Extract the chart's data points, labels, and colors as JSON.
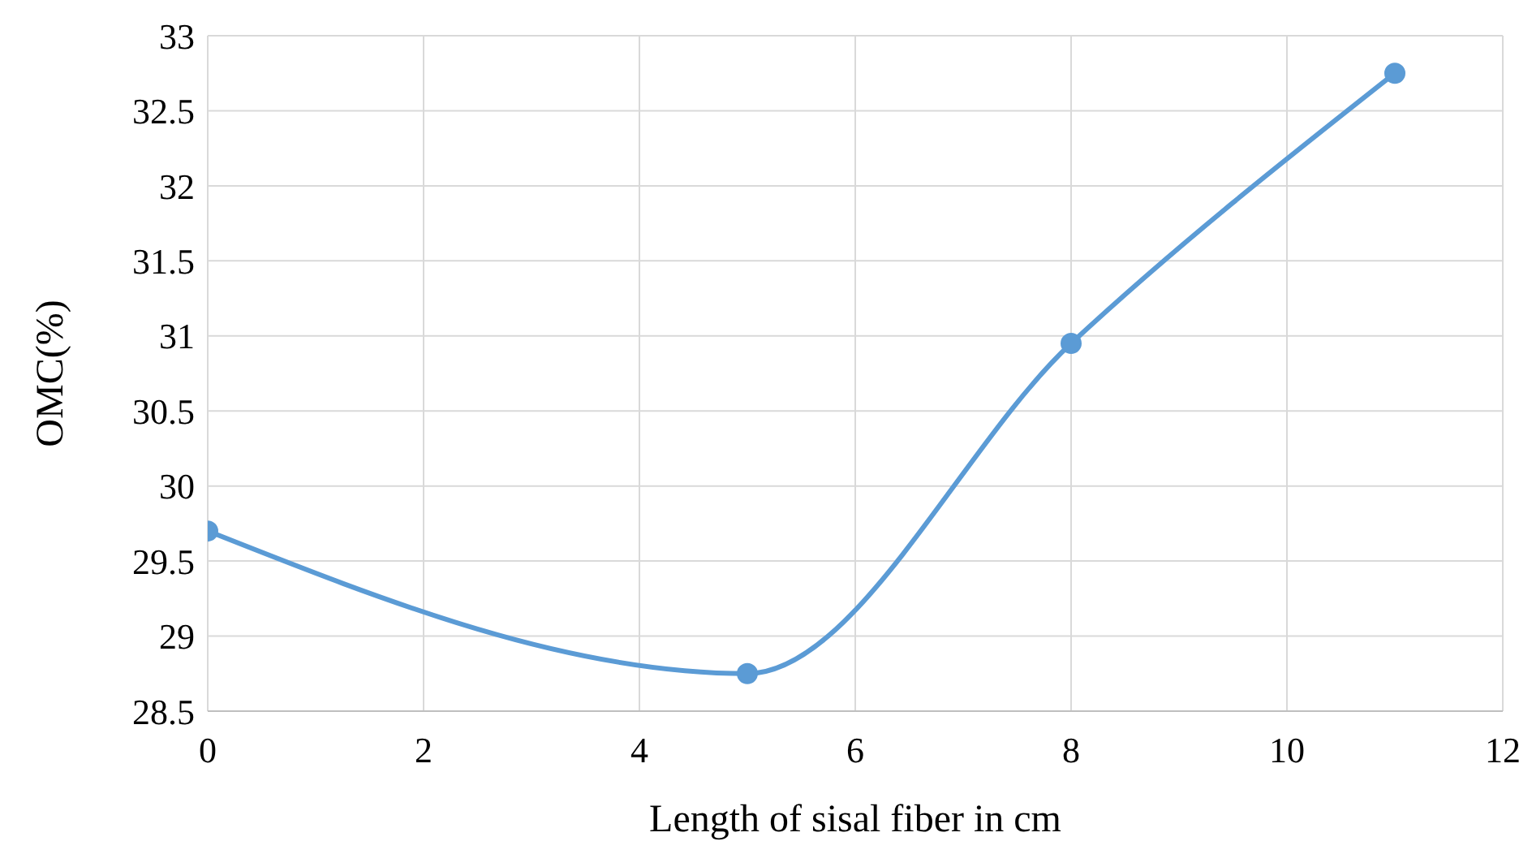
{
  "chart_data": {
    "type": "line",
    "xlabel": "Length of sisal fiber in cm",
    "ylabel": "OMC(%)",
    "x": [
      0,
      5,
      8,
      11
    ],
    "series": [
      {
        "color": "#5b9bd5",
        "values": [
          29.7,
          28.75,
          30.95,
          32.75
        ]
      }
    ],
    "xlim": [
      0,
      12
    ],
    "xticks": [
      0,
      2,
      4,
      6,
      8,
      10,
      12
    ],
    "ylim": [
      28.5,
      33
    ],
    "yticks": [
      28.5,
      29,
      29.5,
      30,
      30.5,
      31,
      31.5,
      32,
      32.5,
      33
    ],
    "grid": true,
    "marker": "circle",
    "line_style": "solid",
    "legend": false
  }
}
